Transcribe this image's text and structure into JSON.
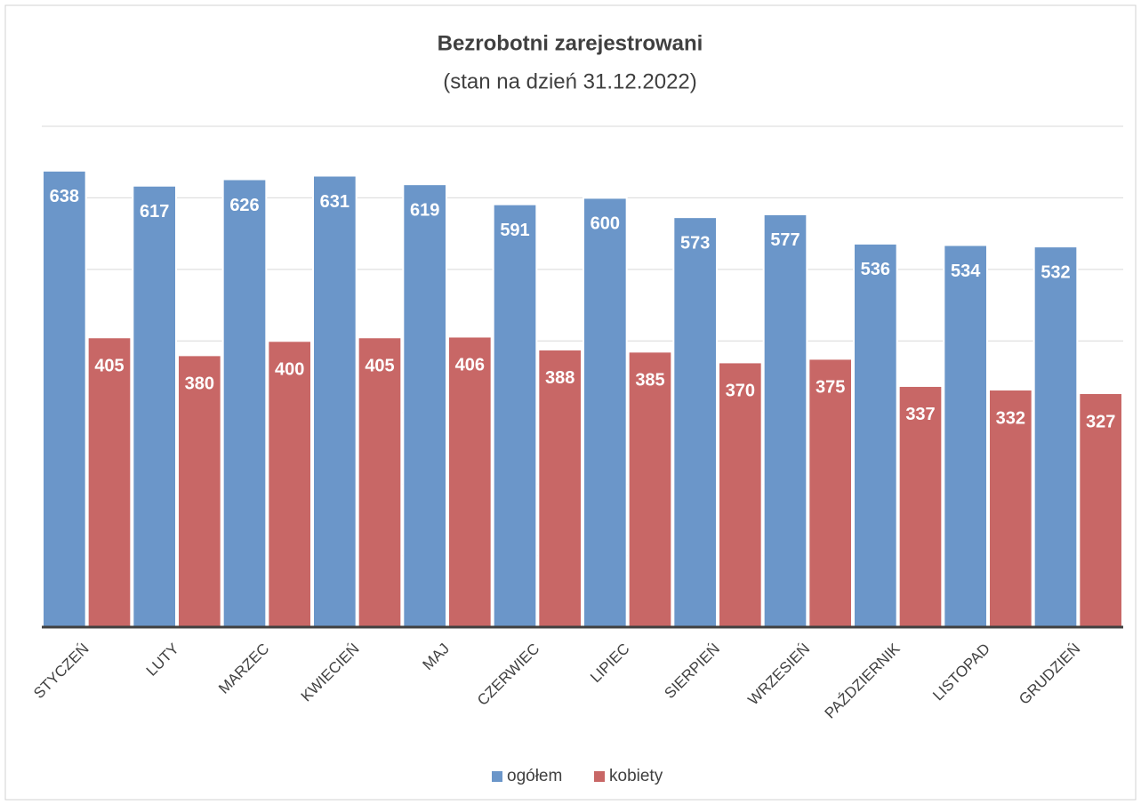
{
  "chart_data": {
    "type": "bar",
    "title": "Bezrobotni zarejestrowani",
    "subtitle": "(stan na dzień 31.12.2022)",
    "categories": [
      "STYCZEŃ",
      "LUTY",
      "MARZEC",
      "KWIECIEŃ",
      "MAJ",
      "CZERWIEC",
      "LIPIEC",
      "SIERPIEŃ",
      "WRZESIEŃ",
      "PAŹDZIERNIK",
      "LISTOPAD",
      "GRUDZIEŃ"
    ],
    "series": [
      {
        "name": "ogółem",
        "color": "#6b96c9",
        "values": [
          638,
          617,
          626,
          631,
          619,
          591,
          600,
          573,
          577,
          536,
          534,
          532
        ]
      },
      {
        "name": "kobiety",
        "color": "#c86766",
        "values": [
          405,
          380,
          400,
          405,
          406,
          388,
          385,
          370,
          375,
          337,
          332,
          327
        ]
      }
    ],
    "ylim": [
      0,
      700
    ],
    "yticks": [
      0,
      100,
      200,
      300,
      400,
      500,
      600,
      700
    ],
    "grid": true,
    "legend": "bottom"
  }
}
